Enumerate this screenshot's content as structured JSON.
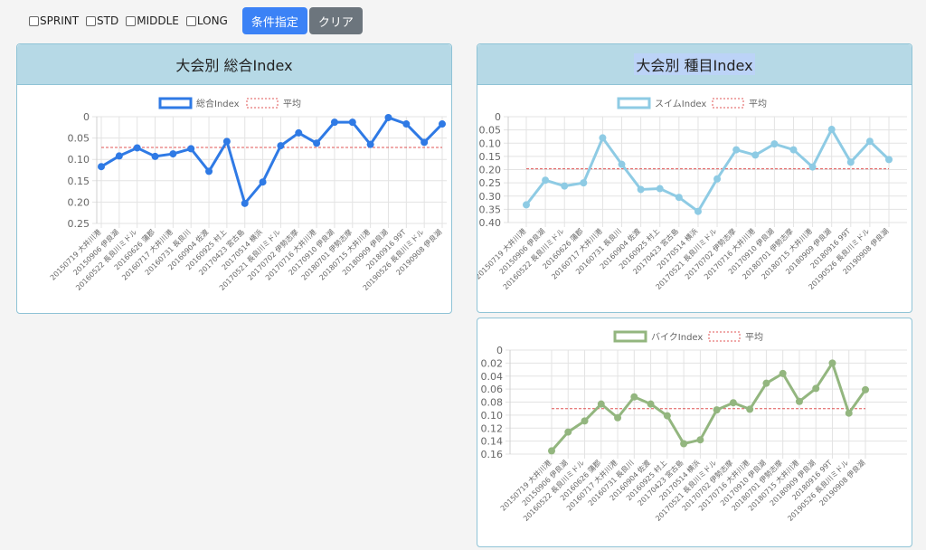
{
  "filters": [
    "SPRINT",
    "STD",
    "MIDDLE",
    "LONG"
  ],
  "buttons": {
    "search": "条件指定",
    "clear": "クリア"
  },
  "colors": {
    "total": "#2f7ae5",
    "swim": "#8ecbe4",
    "bike": "#93b67f",
    "avg": "#e05454"
  },
  "categories": [
    "20150719 大井川港",
    "20150906 伊良湖",
    "20160522 長良川ミドル",
    "20160626 蒲郡",
    "20160717 大井川港",
    "20160731 長良川",
    "20160904 佐渡",
    "20160925 村上",
    "20170423 宮古島",
    "20170514 横浜",
    "20170521 長良川ミドル",
    "20170702 伊勢志摩",
    "20170716 大井川港",
    "20170910 伊良湖",
    "20180701 伊勢志摩",
    "20180715 大井川港",
    "20180909 伊良湖",
    "20180916 99T",
    "20190526 長良川ミドル",
    "20190908 伊良湖"
  ],
  "cards": {
    "total": {
      "title": "大会別 総合Index"
    },
    "event": {
      "title": "大会別 種目Index"
    }
  },
  "chart_data": [
    {
      "type": "line",
      "legend": [
        "総合Index",
        "平均"
      ],
      "ylim": [
        0,
        0.25
      ],
      "yticks": [
        "0",
        "0.05",
        "0.10",
        "0.15",
        "0.20",
        "0.25"
      ],
      "series": [
        {
          "name": "総合Index",
          "values": [
            0.117,
            0.092,
            0.073,
            0.093,
            0.087,
            0.075,
            0.128,
            0.058,
            0.203,
            0.153,
            0.068,
            0.038,
            0.062,
            0.013,
            0.013,
            0.065,
            0.002,
            0.017,
            0.06,
            0.017
          ]
        },
        {
          "name": "平均",
          "values": [
            0.072
          ]
        }
      ]
    },
    {
      "type": "line",
      "legend": [
        "スイムIndex",
        "平均"
      ],
      "ylim": [
        0,
        0.4
      ],
      "yticks": [
        "0",
        "0.05",
        "0.10",
        "0.15",
        "0.20",
        "0.25",
        "0.30",
        "0.35",
        "0.40"
      ],
      "series": [
        {
          "name": "スイムIndex",
          "values": [
            0.333,
            0.24,
            0.262,
            0.25,
            0.08,
            0.18,
            0.275,
            0.272,
            0.305,
            0.358,
            0.235,
            0.125,
            0.145,
            0.103,
            0.125,
            0.19,
            0.048,
            0.172,
            0.093,
            0.162
          ]
        },
        {
          "name": "平均",
          "values": [
            0.197
          ]
        }
      ]
    },
    {
      "type": "line",
      "legend": [
        "バイクIndex",
        "平均"
      ],
      "ylim": [
        0,
        0.16
      ],
      "yticks": [
        "0",
        "0.02",
        "0.04",
        "0.06",
        "0.08",
        "0.10",
        "0.12",
        "0.14",
        "0.16"
      ],
      "series": [
        {
          "name": "バイクIndex",
          "values": [
            0.155,
            0.126,
            0.109,
            0.083,
            0.104,
            0.072,
            0.083,
            0.101,
            0.144,
            0.138,
            0.092,
            0.081,
            0.091,
            0.051,
            0.036,
            0.079,
            0.059,
            0.02,
            0.097,
            0.061
          ]
        },
        {
          "name": "平均",
          "values": [
            0.09
          ]
        }
      ]
    }
  ]
}
